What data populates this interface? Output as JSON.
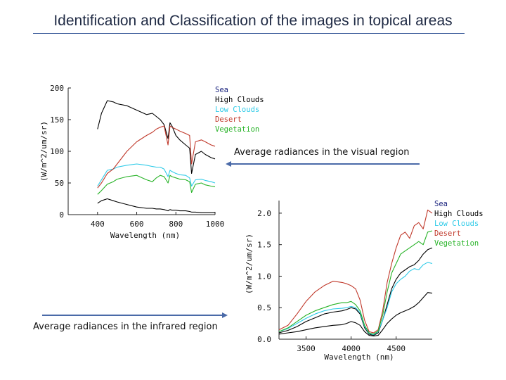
{
  "slide": {
    "title": "Identification and Classification of the images in topical areas",
    "caption_visual": "Average radiances in the visual region",
    "caption_infrared": "Average radiances in the infrared region",
    "arrow_color": "#4a6aa8",
    "rule_color": "#3d5d9b"
  },
  "chart_data": [
    {
      "type": "line",
      "id": "visual",
      "title": "",
      "xlabel": "Wavelength (nm)",
      "ylabel": "(W/m^2/um/sr)",
      "xlim": [
        250,
        1000
      ],
      "ylim": [
        0,
        200
      ],
      "xticks": [
        400,
        600,
        800,
        1000
      ],
      "xtick_labels": [
        "400",
        "600",
        "800",
        "1000"
      ],
      "yticks": [
        0,
        50,
        100,
        150,
        200
      ],
      "ytick_labels": [
        "0",
        "50",
        "100",
        "150",
        "200"
      ],
      "legend_position": "top-right-outside",
      "x": [
        400,
        420,
        450,
        480,
        500,
        550,
        600,
        650,
        680,
        700,
        720,
        740,
        760,
        770,
        780,
        800,
        820,
        850,
        870,
        880,
        900,
        930,
        950,
        980,
        1000
      ],
      "series": [
        {
          "name": "Sea",
          "color": "#000000",
          "values": [
            18,
            22,
            25,
            22,
            20,
            16,
            12,
            10,
            10,
            9,
            9,
            8,
            6,
            8,
            7,
            7,
            6,
            6,
            5,
            4,
            4,
            3,
            3,
            3,
            3
          ]
        },
        {
          "name": "High Clouds",
          "color": "#000000",
          "values": [
            135,
            160,
            180,
            178,
            175,
            172,
            165,
            158,
            160,
            155,
            150,
            142,
            120,
            145,
            140,
            125,
            118,
            110,
            105,
            65,
            95,
            100,
            95,
            90,
            88
          ]
        },
        {
          "name": "Low Clouds",
          "color": "#2ecbe8",
          "values": [
            45,
            55,
            70,
            72,
            75,
            78,
            80,
            78,
            76,
            75,
            75,
            72,
            60,
            70,
            68,
            65,
            63,
            62,
            58,
            45,
            55,
            56,
            54,
            52,
            50
          ]
        },
        {
          "name": "Desert",
          "color": "#c0392b",
          "values": [
            42,
            50,
            65,
            72,
            80,
            100,
            115,
            125,
            130,
            135,
            138,
            140,
            110,
            140,
            138,
            135,
            132,
            128,
            125,
            80,
            115,
            118,
            115,
            110,
            108
          ]
        },
        {
          "name": "Vegetation",
          "color": "#27b327",
          "values": [
            32,
            38,
            48,
            52,
            56,
            60,
            62,
            55,
            52,
            58,
            62,
            60,
            50,
            62,
            60,
            58,
            56,
            55,
            52,
            35,
            48,
            50,
            47,
            45,
            44
          ]
        }
      ]
    },
    {
      "type": "line",
      "id": "infrared",
      "title": "",
      "xlabel": "Wavelength (nm)",
      "ylabel": "(W/m^2/um/sr)",
      "xlim": [
        3200,
        4900
      ],
      "ylim": [
        0,
        2.2
      ],
      "xticks": [
        3500,
        4000,
        4500
      ],
      "xtick_labels": [
        "3500",
        "4000",
        "4500"
      ],
      "yticks": [
        0,
        0.5,
        1.0,
        1.5,
        2.0
      ],
      "ytick_labels": [
        "0.0",
        "0.5",
        "1.0",
        "1.5",
        "2.0"
      ],
      "legend_position": "top-right-outside",
      "x": [
        3200,
        3300,
        3400,
        3500,
        3600,
        3700,
        3800,
        3900,
        3950,
        4000,
        4050,
        4100,
        4150,
        4200,
        4250,
        4300,
        4350,
        4400,
        4450,
        4500,
        4550,
        4600,
        4650,
        4700,
        4750,
        4800,
        4850,
        4900
      ],
      "series": [
        {
          "name": "Sea",
          "color": "#000000",
          "values": [
            0.08,
            0.1,
            0.12,
            0.15,
            0.18,
            0.2,
            0.22,
            0.23,
            0.25,
            0.28,
            0.26,
            0.22,
            0.12,
            0.06,
            0.05,
            0.06,
            0.15,
            0.25,
            0.32,
            0.38,
            0.42,
            0.45,
            0.48,
            0.52,
            0.58,
            0.66,
            0.74,
            0.73
          ]
        },
        {
          "name": "High Clouds",
          "color": "#000000",
          "values": [
            0.1,
            0.14,
            0.2,
            0.28,
            0.34,
            0.4,
            0.43,
            0.45,
            0.47,
            0.5,
            0.48,
            0.4,
            0.18,
            0.08,
            0.06,
            0.1,
            0.3,
            0.55,
            0.8,
            0.95,
            1.05,
            1.1,
            1.15,
            1.18,
            1.25,
            1.35,
            1.42,
            1.45
          ]
        },
        {
          "name": "Low Clouds",
          "color": "#2ecbe8",
          "values": [
            0.12,
            0.17,
            0.25,
            0.33,
            0.4,
            0.45,
            0.48,
            0.49,
            0.5,
            0.52,
            0.5,
            0.42,
            0.2,
            0.09,
            0.07,
            0.12,
            0.3,
            0.5,
            0.75,
            0.88,
            0.95,
            1.0,
            1.08,
            1.12,
            1.1,
            1.18,
            1.22,
            1.2
          ]
        },
        {
          "name": "Desert",
          "color": "#c0392b",
          "values": [
            0.15,
            0.22,
            0.4,
            0.6,
            0.75,
            0.85,
            0.92,
            0.9,
            0.88,
            0.85,
            0.8,
            0.62,
            0.3,
            0.12,
            0.1,
            0.15,
            0.45,
            0.9,
            1.2,
            1.45,
            1.65,
            1.7,
            1.6,
            1.8,
            1.85,
            1.75,
            2.05,
            2.0
          ]
        },
        {
          "name": "Vegetation",
          "color": "#27b327",
          "values": [
            0.12,
            0.18,
            0.28,
            0.38,
            0.45,
            0.5,
            0.55,
            0.58,
            0.58,
            0.6,
            0.55,
            0.45,
            0.22,
            0.1,
            0.08,
            0.13,
            0.38,
            0.75,
            1.05,
            1.2,
            1.35,
            1.4,
            1.45,
            1.5,
            1.55,
            1.5,
            1.7,
            1.72
          ]
        }
      ]
    }
  ]
}
